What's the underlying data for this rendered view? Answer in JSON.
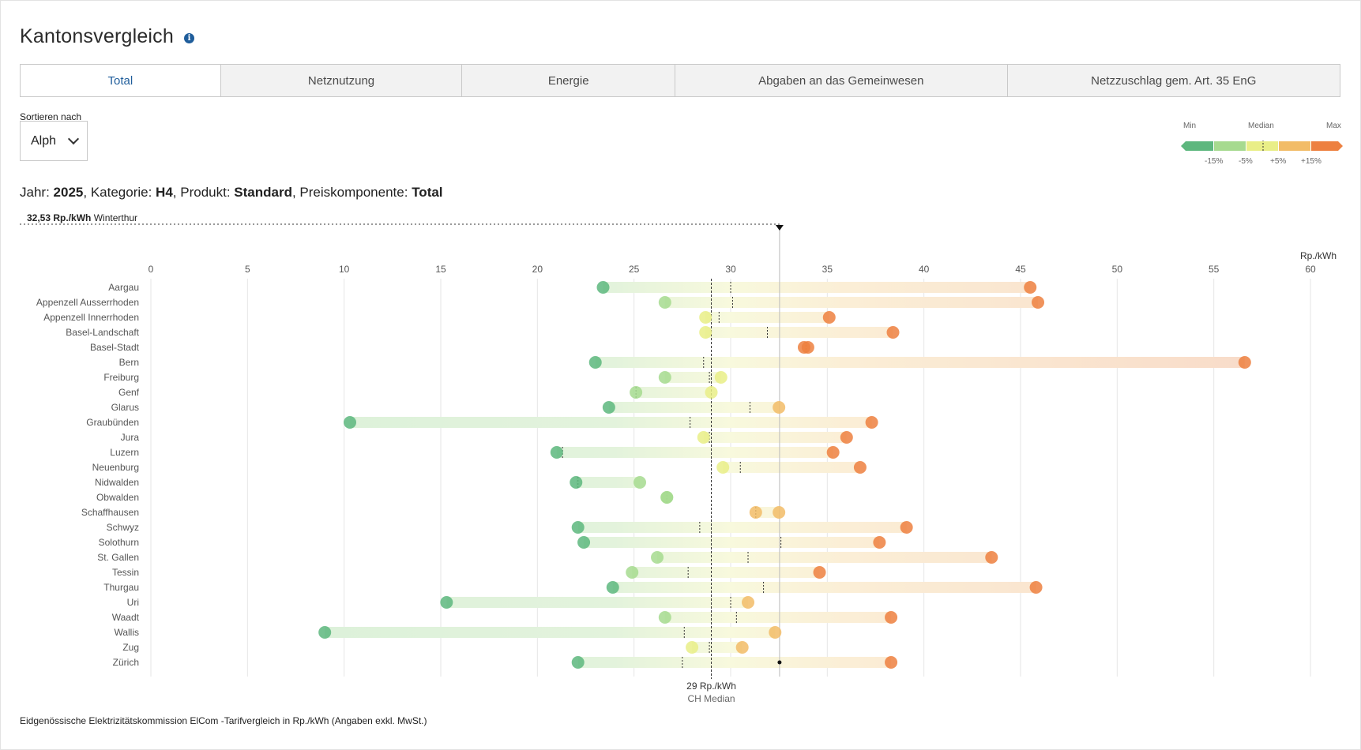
{
  "title": "Kantonsvergleich",
  "info_icon": "i",
  "tabs": [
    "Total",
    "Netznutzung",
    "Energie",
    "Abgaben an das Gemeinwesen",
    "Netzzuschlag gem. Art. 35 EnG"
  ],
  "active_tab": "Total",
  "sort": {
    "label": "Sortieren nach",
    "value": "Alph"
  },
  "legend": {
    "min": "Min",
    "median": "Median",
    "max": "Max",
    "ticks": [
      "-15%",
      "-5%",
      "+5%",
      "+15%"
    ],
    "colors": [
      "#5db77e",
      "#a6da8f",
      "#e9ee87",
      "#f2bc67",
      "#ed8040"
    ]
  },
  "filters": {
    "jahr_label": "Jahr:",
    "jahr": "2025",
    "kategorie_label": "Kategorie:",
    "kategorie": "H4",
    "produkt_label": "Produkt:",
    "produkt": "Standard",
    "preis_label": "Preiskomponente:",
    "preis": "Total"
  },
  "highlight": {
    "value_label": "32,53 Rp./kWh",
    "name": "Winterthur"
  },
  "median_label": {
    "value": "29 Rp./kWh",
    "name": "CH Median"
  },
  "footer": "Eidgenössische Elektrizitätskommission ElCom -Tarifvergleich in Rp./kWh (Angaben exkl. MwSt.)",
  "chart_data": {
    "type": "range-dot",
    "xlabel": "Rp./kWh",
    "xlim": [
      0,
      60
    ],
    "x_ticks": [
      0,
      5,
      10,
      15,
      20,
      25,
      30,
      35,
      40,
      45,
      50,
      55,
      60
    ],
    "ch_median": 29,
    "highlight_value": 32.53,
    "highlight_row": "Zürich",
    "categories": [
      "Aargau",
      "Appenzell Ausserrhoden",
      "Appenzell Innerrhoden",
      "Basel-Landschaft",
      "Basel-Stadt",
      "Bern",
      "Freiburg",
      "Genf",
      "Glarus",
      "Graubünden",
      "Jura",
      "Luzern",
      "Neuenburg",
      "Nidwalden",
      "Obwalden",
      "Schaffhausen",
      "Schwyz",
      "Solothurn",
      "St. Gallen",
      "Tessin",
      "Thurgau",
      "Uri",
      "Waadt",
      "Wallis",
      "Zug",
      "Zürich"
    ],
    "min": [
      23.4,
      26.6,
      28.7,
      28.7,
      33.8,
      23.0,
      26.6,
      25.1,
      23.7,
      10.3,
      28.6,
      21.0,
      29.6,
      22.0,
      26.7,
      31.3,
      22.1,
      22.4,
      26.2,
      24.9,
      23.9,
      15.3,
      26.6,
      9.0,
      28.0,
      22.1
    ],
    "max": [
      45.5,
      45.9,
      35.1,
      38.4,
      34.0,
      56.6,
      29.5,
      29.0,
      32.5,
      37.3,
      36.0,
      35.3,
      36.7,
      25.3,
      26.7,
      32.5,
      39.1,
      37.7,
      43.5,
      34.6,
      45.8,
      30.9,
      38.3,
      32.3,
      30.6,
      38.3
    ],
    "median": [
      30.0,
      30.1,
      29.4,
      31.9,
      33.9,
      28.6,
      28.9,
      25.1,
      31.0,
      27.9,
      28.9,
      21.3,
      30.5,
      22.1,
      26.7,
      31.3,
      28.4,
      32.6,
      30.9,
      27.8,
      31.7,
      30.0,
      30.3,
      27.6,
      28.9,
      27.5
    ]
  }
}
